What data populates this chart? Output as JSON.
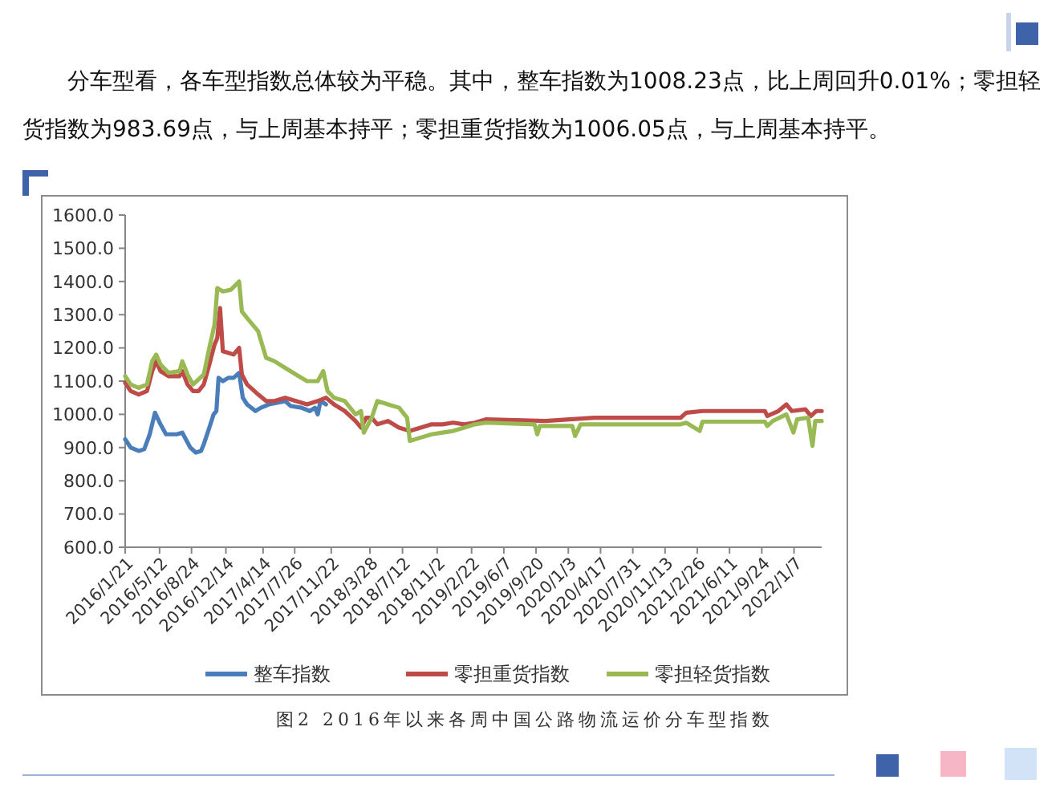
{
  "chart_data": {
    "type": "line",
    "annotations": [
      "分车型看，各车型指数总体较为平稳。其中，整车指数为1008.23点，比上周回升0.01%；零担轻货指数为983.69点，与上周基本持平；零担重货指数为1006.05点，与上周基本持平。",
      "图2 2016年以来各周中国公路物流运价分车型指数"
    ],
    "xlim": [
      "2016-01-21",
      "2022-04-07"
    ],
    "xticks": [
      {
        "value": "2016-01-21",
        "label": "2016/1/21"
      },
      {
        "value": "2016-05-12",
        "label": "2016/5/12"
      },
      {
        "value": "2016-08-24",
        "label": "2016/8/24"
      },
      {
        "value": "2016-12-14",
        "label": "2016/12/14"
      },
      {
        "value": "2017-04-14",
        "label": "2017/4/14"
      },
      {
        "value": "2017-07-26",
        "label": "2017/7/26"
      },
      {
        "value": "2017-11-22",
        "label": "2017/11/22"
      },
      {
        "value": "2018-03-28",
        "label": "2018/3/28"
      },
      {
        "value": "2018-07-12",
        "label": "2018/7/12"
      },
      {
        "value": "2018-11-02",
        "label": "2018/11/2"
      },
      {
        "value": "2019-02-22",
        "label": "2019/2/22"
      },
      {
        "value": "2019-06-07",
        "label": "2019/6/7"
      },
      {
        "value": "2019-09-20",
        "label": "2019/9/20"
      },
      {
        "value": "2020-01-03",
        "label": "2020/1/3"
      },
      {
        "value": "2020-04-17",
        "label": "2020/4/17"
      },
      {
        "value": "2020-07-31",
        "label": "2020/7/31"
      },
      {
        "value": "2020-11-13",
        "label": "2020/11/13"
      },
      {
        "value": "2021-02-26",
        "label": "2021/2/26"
      },
      {
        "value": "2021-06-11",
        "label": "2021/6/11"
      },
      {
        "value": "2021-09-24",
        "label": "2021/9/24"
      },
      {
        "value": "2022-01-07",
        "label": "2022/1/7"
      }
    ],
    "ylim": [
      600,
      1600
    ],
    "yticks": [
      {
        "value": 600,
        "label": "600.0"
      },
      {
        "value": 700,
        "label": "700.0"
      },
      {
        "value": 800,
        "label": "800.0"
      },
      {
        "value": 900,
        "label": "900.0"
      },
      {
        "value": 1000,
        "label": "1000.0"
      },
      {
        "value": 1100,
        "label": "1100.0"
      },
      {
        "value": 1200,
        "label": "1200.0"
      },
      {
        "value": 1300,
        "label": "1300.0"
      },
      {
        "value": 1400,
        "label": "1400.0"
      },
      {
        "value": 1500,
        "label": "1500.0"
      },
      {
        "value": 1600,
        "label": "1600.0"
      }
    ],
    "grid": false,
    "legend": "bottom",
    "marker": "none",
    "line_style": "solid",
    "series": [
      {
        "name": "整车指数",
        "color": "#4a7ebb",
        "x": [
          "2016-01-21",
          "2016-02-08",
          "2016-03-05",
          "2016-03-23",
          "2016-04-10",
          "2016-04-27",
          "2016-05-15",
          "2016-06-02",
          "2016-07-07",
          "2016-07-25",
          "2016-08-20",
          "2016-09-07",
          "2016-09-24",
          "2016-10-03",
          "2016-10-21",
          "2016-11-04",
          "2016-11-13",
          "2016-11-20",
          "2016-12-04",
          "2016-12-22",
          "2017-01-08",
          "2017-01-26",
          "2017-02-07",
          "2017-02-21",
          "2017-03-20",
          "2017-04-07",
          "2017-05-03",
          "2017-06-25",
          "2017-07-13",
          "2017-08-17",
          "2017-09-13",
          "2017-09-30",
          "2017-10-09",
          "2017-10-18",
          "2017-11-05"
        ],
        "values": [
          925,
          900,
          890,
          895,
          940,
          1005,
          970,
          940,
          940,
          945,
          900,
          885,
          890,
          910,
          960,
          1000,
          1010,
          1110,
          1100,
          1110,
          1110,
          1125,
          1050,
          1030,
          1010,
          1020,
          1030,
          1040,
          1025,
          1020,
          1010,
          1020,
          1000,
          1040,
          1030
        ]
      },
      {
        "name": "零担重货指数",
        "color": "#be4b48",
        "x": [
          "2016-01-21",
          "2016-02-08",
          "2016-03-05",
          "2016-04-01",
          "2016-04-18",
          "2016-05-01",
          "2016-05-15",
          "2016-06-10",
          "2016-07-16",
          "2016-07-25",
          "2016-08-11",
          "2016-08-29",
          "2016-09-16",
          "2016-10-03",
          "2016-10-21",
          "2016-11-07",
          "2016-11-16",
          "2016-11-25",
          "2016-12-04",
          "2016-12-22",
          "2017-01-08",
          "2017-01-26",
          "2017-02-04",
          "2017-02-21",
          "2017-03-29",
          "2017-04-24",
          "2017-05-21",
          "2017-06-25",
          "2017-07-30",
          "2017-09-04",
          "2017-10-09",
          "2017-11-05",
          "2017-12-01",
          "2018-01-05",
          "2018-02-09",
          "2018-02-27",
          "2018-03-16",
          "2018-04-03",
          "2018-04-21",
          "2018-05-26",
          "2018-07-01",
          "2018-08-05",
          "2018-09-09",
          "2018-10-15",
          "2018-11-19",
          "2018-12-24",
          "2019-01-29",
          "2019-03-05",
          "2019-04-09",
          "2019-10-20",
          "2020-03-27",
          "2021-01-03",
          "2021-01-21",
          "2021-03-15",
          "2021-10-04",
          "2021-10-12",
          "2021-11-17",
          "2021-12-13",
          "2021-12-31",
          "2022-02-13",
          "2022-03-03",
          "2022-03-20",
          "2022-04-07"
        ],
        "values": [
          1095,
          1070,
          1060,
          1070,
          1130,
          1160,
          1130,
          1115,
          1115,
          1130,
          1090,
          1070,
          1070,
          1090,
          1150,
          1210,
          1230,
          1320,
          1190,
          1185,
          1180,
          1200,
          1120,
          1090,
          1060,
          1040,
          1040,
          1050,
          1040,
          1030,
          1040,
          1050,
          1030,
          1010,
          980,
          960,
          990,
          990,
          970,
          980,
          960,
          950,
          960,
          970,
          970,
          975,
          970,
          975,
          985,
          980,
          990,
          990,
          1005,
          1010,
          1010,
          995,
          1010,
          1030,
          1010,
          1015,
          995,
          1010,
          1010
        ]
      },
      {
        "name": "零担轻货指数",
        "color": "#98b954",
        "x": [
          "2016-01-21",
          "2016-02-08",
          "2016-03-05",
          "2016-04-01",
          "2016-04-18",
          "2016-05-01",
          "2016-05-15",
          "2016-06-10",
          "2016-07-16",
          "2016-07-25",
          "2016-08-11",
          "2016-08-29",
          "2016-10-03",
          "2016-10-21",
          "2016-11-07",
          "2016-11-16",
          "2016-12-04",
          "2016-12-30",
          "2017-01-26",
          "2017-02-04",
          "2017-02-21",
          "2017-03-29",
          "2017-04-24",
          "2017-05-21",
          "2017-06-25",
          "2017-07-30",
          "2017-09-04",
          "2017-10-09",
          "2017-10-27",
          "2017-11-10",
          "2017-12-01",
          "2018-01-05",
          "2018-02-09",
          "2018-02-27",
          "2018-03-08",
          "2018-04-03",
          "2018-04-21",
          "2018-05-26",
          "2018-07-01",
          "2018-07-27",
          "2018-08-05",
          "2018-09-09",
          "2018-10-15",
          "2018-11-19",
          "2018-12-24",
          "2019-01-29",
          "2019-03-05",
          "2019-04-09",
          "2019-09-15",
          "2019-09-24",
          "2019-10-02",
          "2020-01-16",
          "2020-01-25",
          "2020-02-12",
          "2021-01-03",
          "2021-01-21",
          "2021-03-06",
          "2021-03-15",
          "2021-10-04",
          "2021-10-12",
          "2021-10-30",
          "2021-12-13",
          "2022-01-05",
          "2022-01-17",
          "2022-02-22",
          "2022-03-08",
          "2022-03-17",
          "2022-04-07"
        ],
        "values": [
          1115,
          1090,
          1080,
          1090,
          1160,
          1180,
          1150,
          1125,
          1130,
          1160,
          1120,
          1090,
          1120,
          1200,
          1270,
          1380,
          1370,
          1375,
          1400,
          1310,
          1290,
          1250,
          1170,
          1160,
          1140,
          1120,
          1100,
          1100,
          1130,
          1070,
          1050,
          1040,
          1000,
          1010,
          945,
          990,
          1040,
          1030,
          1020,
          990,
          920,
          930,
          940,
          945,
          950,
          960,
          970,
          975,
          970,
          940,
          965,
          965,
          935,
          970,
          970,
          975,
          950,
          978,
          978,
          965,
          980,
          1000,
          945,
          985,
          990,
          905,
          980,
          980
        ]
      }
    ]
  }
}
